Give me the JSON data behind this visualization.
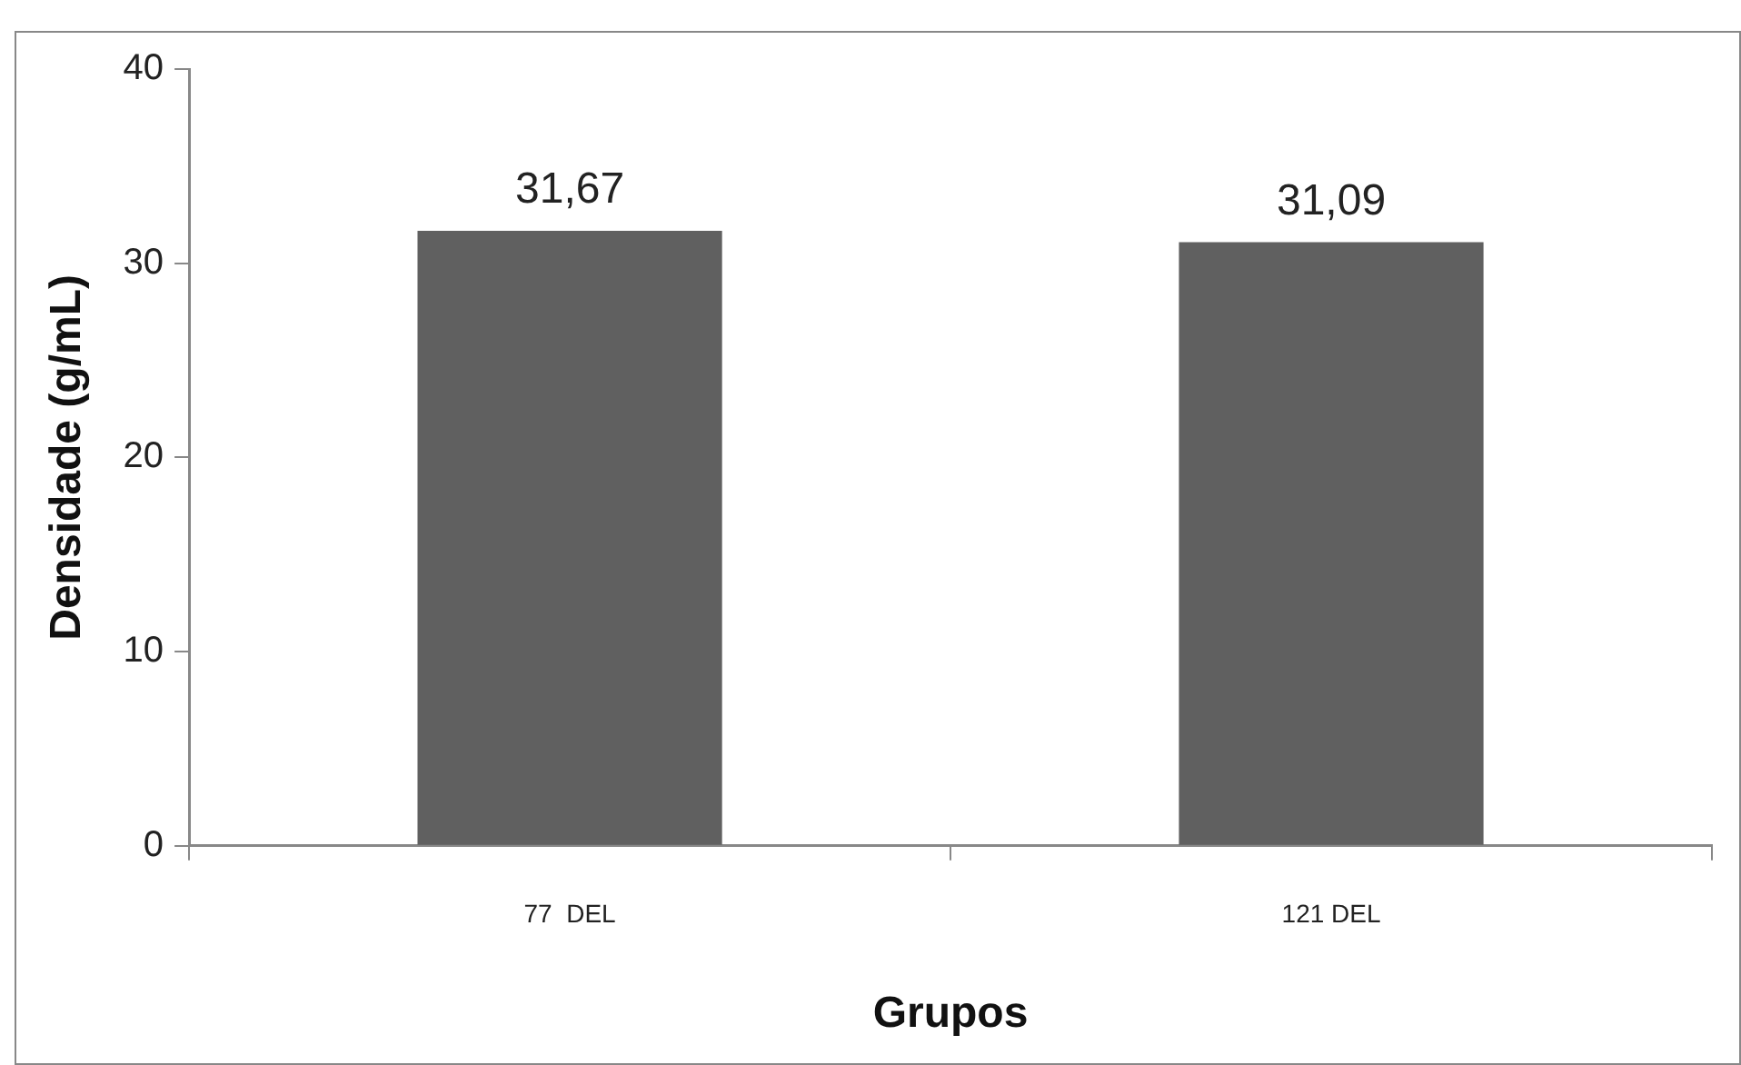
{
  "chart_data": {
    "type": "bar",
    "xlabel": "Grupos",
    "ylabel": "Densidade (g/mL)",
    "categories": [
      "77  DEL",
      "121 DEL"
    ],
    "values": [
      31.67,
      31.09
    ],
    "value_labels": [
      "31,67",
      "31,09"
    ],
    "color": "#606060",
    "ylim": [
      0,
      40
    ],
    "yticks": [
      0,
      10,
      20,
      30,
      40
    ],
    "grid": false,
    "legend": false
  }
}
